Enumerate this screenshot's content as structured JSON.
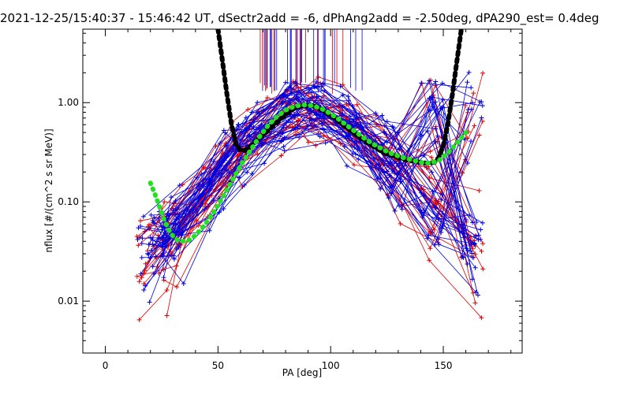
{
  "chart_data": {
    "type": "line",
    "title": "2021-12-25/15:40:37 - 15:46:42 UT, dSectr2add = -6, dPhAng2add = -2.50deg, dPA290_est=    0.4deg",
    "xlabel": "PA [deg]",
    "ylabel": "nflux [#/(cm^2 s sr MeV)]",
    "xlim": [
      -10,
      185
    ],
    "ylim": [
      0.003,
      5.5
    ],
    "yscale": "log",
    "grid": false,
    "x_ticks": [
      0,
      50,
      100,
      150
    ],
    "x_tick_labels": [
      "0",
      "50",
      "100",
      "150"
    ],
    "y_ticks": [
      0.01,
      0.1,
      1.0
    ],
    "y_tick_labels": [
      "0.01",
      "0.10",
      "1.00"
    ],
    "colors": {
      "red_traces": "#e00000",
      "blue_traces": "#0000e0",
      "fit_black": "#000000",
      "fit_green": "#22e022"
    },
    "series": [
      {
        "color": "black",
        "style": "thick-dashed",
        "x": [
          50,
          52,
          54,
          56,
          58,
          60,
          62,
          65,
          68,
          72,
          76,
          80,
          84,
          88,
          92,
          96,
          100,
          104,
          108,
          112,
          116,
          120,
          124,
          128,
          132,
          136,
          140,
          143,
          146,
          148,
          150,
          152,
          154,
          156,
          158
        ],
        "y": [
          5.5,
          2.6,
          1.2,
          0.6,
          0.38,
          0.33,
          0.33,
          0.37,
          0.43,
          0.52,
          0.63,
          0.76,
          0.88,
          0.94,
          0.93,
          0.85,
          0.74,
          0.64,
          0.54,
          0.46,
          0.4,
          0.35,
          0.31,
          0.29,
          0.27,
          0.26,
          0.25,
          0.245,
          0.25,
          0.28,
          0.37,
          0.6,
          1.2,
          2.6,
          5.5
        ]
      },
      {
        "color": "green",
        "style": "thick-dotted",
        "x": [
          20,
          22,
          24,
          26,
          28,
          30,
          32,
          34,
          37,
          40,
          44,
          48,
          52,
          56,
          60,
          64,
          68,
          72,
          76,
          80,
          84,
          88,
          92,
          96,
          100,
          104,
          108,
          112,
          116,
          120,
          124,
          128,
          132,
          136,
          140,
          144,
          148,
          152,
          156,
          160
        ],
        "y": [
          0.155,
          0.12,
          0.09,
          0.067,
          0.053,
          0.045,
          0.041,
          0.04,
          0.041,
          0.046,
          0.058,
          0.078,
          0.11,
          0.16,
          0.23,
          0.32,
          0.44,
          0.58,
          0.72,
          0.84,
          0.92,
          0.95,
          0.93,
          0.87,
          0.77,
          0.67,
          0.57,
          0.49,
          0.42,
          0.37,
          0.33,
          0.3,
          0.28,
          0.265,
          0.25,
          0.245,
          0.26,
          0.31,
          0.39,
          0.5
        ]
      }
    ]
  }
}
